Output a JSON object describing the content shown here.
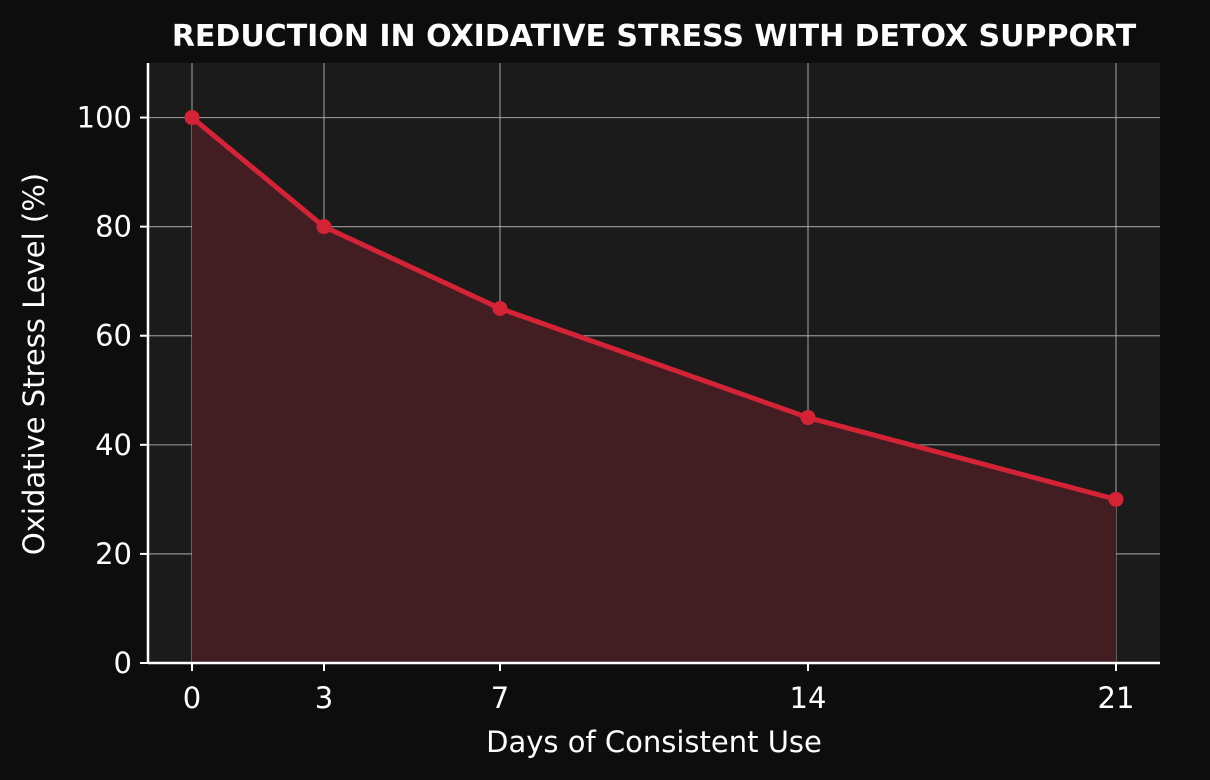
{
  "chart_data": {
    "type": "area",
    "title": "REDUCTION IN OXIDATIVE STRESS WITH DETOX SUPPORT",
    "xlabel": "Days of Consistent Use",
    "ylabel": "Oxidative Stress Level (%)",
    "x": [
      0,
      3,
      7,
      14,
      21
    ],
    "y": [
      100,
      80,
      65,
      45,
      30
    ],
    "xticks": [
      0,
      3,
      7,
      14,
      21
    ],
    "yticks": [
      0,
      20,
      40,
      60,
      80,
      100
    ],
    "xlim": [
      -1,
      22
    ],
    "ylim": [
      0,
      110
    ],
    "grid": true,
    "colors": {
      "background": "#0d0d0d",
      "plot_background": "#1b1b1b",
      "line": "#d52336",
      "fill": "#421d22",
      "grid": "#b7b7b7",
      "text": "#ffffff",
      "axis": "#ffffff"
    }
  }
}
